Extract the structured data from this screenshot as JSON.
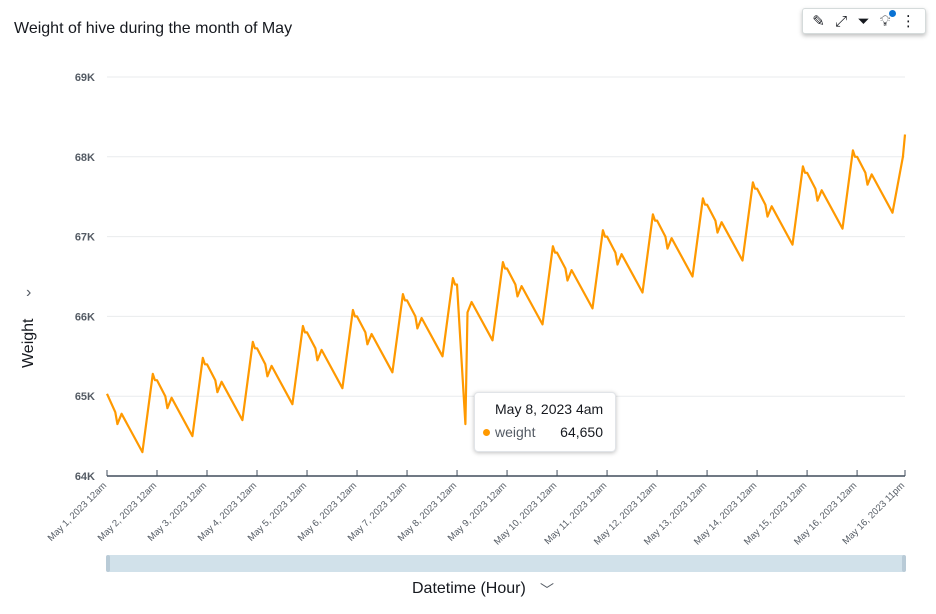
{
  "colors": {
    "line": "#ff9900",
    "grid": "#e9ebed",
    "axis": "#414d5c",
    "scrollbar": "#d1e1ea"
  },
  "toolbar": {
    "icons": [
      "pencil-icon",
      "expand-icon",
      "filter-icon",
      "lightbulb-icon",
      "more-icon"
    ]
  },
  "tooltip": {
    "title": "May 8, 2023 4am",
    "series": "weight",
    "value": "64,650"
  },
  "chart_data": {
    "type": "line",
    "title": "Weight of hive during the month of May",
    "xlabel": "Datetime (Hour)",
    "ylabel": "Weight",
    "ylim": [
      64000,
      69000
    ],
    "yticks": [
      "64K",
      "65K",
      "66K",
      "67K",
      "68K",
      "69K"
    ],
    "xticks": [
      "May 1, 2023 12am",
      "May 2, 2023 12am",
      "May 3, 2023 12am",
      "May 4, 2023 12am",
      "May 5, 2023 12am",
      "May 6, 2023 12am",
      "May 7, 2023 12am",
      "May 8, 2023 12am",
      "May 9, 2023 12am",
      "May 10, 2023 12am",
      "May 11, 2023 12am",
      "May 12, 2023 12am",
      "May 13, 2023 12am",
      "May 14, 2023 12am",
      "May 15, 2023 12am",
      "May 16, 2023 12am",
      "May 16, 2023 11pm"
    ],
    "xlim_hours": [
      0,
      383
    ],
    "hours_of_day": [
      0,
      4,
      5,
      7,
      17,
      22,
      23
    ],
    "series": [
      {
        "name": "weight",
        "unit": "K",
        "days": [
          [
            65.03,
            64.8,
            64.65,
            64.78,
            64.3,
            65.28,
            65.2
          ],
          [
            65.2,
            65.0,
            64.85,
            64.98,
            64.5,
            65.48,
            65.4
          ],
          [
            65.4,
            65.2,
            65.05,
            65.18,
            64.7,
            65.68,
            65.6
          ],
          [
            65.6,
            65.4,
            65.25,
            65.38,
            64.9,
            65.88,
            65.8
          ],
          [
            65.8,
            65.6,
            65.45,
            65.58,
            65.1,
            66.08,
            66.0
          ],
          [
            66.0,
            65.8,
            65.65,
            65.78,
            65.3,
            66.28,
            66.2
          ],
          [
            66.2,
            66.0,
            65.85,
            65.98,
            65.5,
            66.48,
            66.4
          ],
          [
            66.4,
            64.65,
            66.05,
            66.18,
            65.7,
            66.68,
            66.6
          ],
          [
            66.6,
            66.4,
            66.25,
            66.38,
            65.9,
            66.88,
            66.8
          ],
          [
            66.8,
            66.6,
            66.45,
            66.58,
            66.1,
            67.08,
            67.0
          ],
          [
            67.0,
            66.8,
            66.65,
            66.78,
            66.3,
            67.28,
            67.2
          ],
          [
            67.2,
            67.0,
            66.85,
            66.98,
            66.5,
            67.48,
            67.4
          ],
          [
            67.4,
            67.2,
            67.05,
            67.18,
            66.7,
            67.68,
            67.6
          ],
          [
            67.6,
            67.4,
            67.25,
            67.38,
            66.9,
            67.88,
            67.8
          ],
          [
            67.8,
            67.6,
            67.45,
            67.58,
            67.1,
            68.08,
            68.0
          ],
          [
            68.0,
            67.8,
            67.65,
            67.78,
            67.3,
            68.0,
            68.28
          ]
        ]
      }
    ]
  }
}
